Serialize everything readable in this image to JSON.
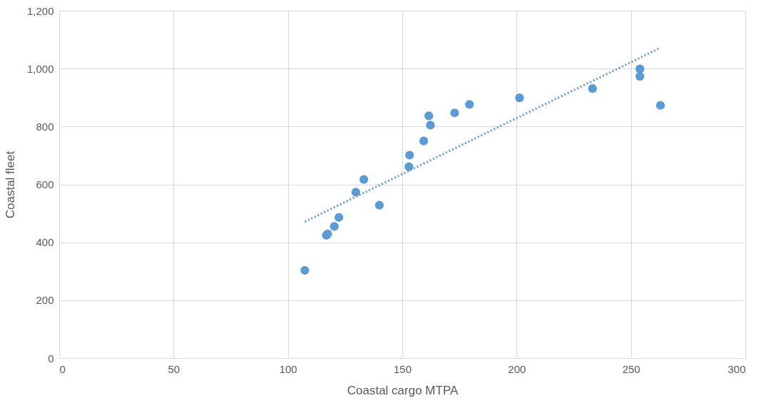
{
  "chart_data": {
    "type": "scatter",
    "xlabel": "Coastal cargo MTPA",
    "ylabel": "Coastal fleet",
    "xlim": [
      0,
      300
    ],
    "xticks": [
      0,
      50,
      100,
      150,
      200,
      250,
      300
    ],
    "ylim": [
      0,
      1200
    ],
    "yticks": [
      {
        "value": 0,
        "label": "0"
      },
      {
        "value": 200,
        "label": "200"
      },
      {
        "value": 400,
        "label": "400"
      },
      {
        "value": 600,
        "label": "600"
      },
      {
        "value": 800,
        "label": "800"
      },
      {
        "value": 1000,
        "label": "1,000"
      },
      {
        "value": 1200,
        "label": "1,200"
      }
    ],
    "grid": true,
    "series": [
      {
        "color": "#5b9bd5",
        "marker": "circle",
        "x": [
          107.4,
          116.8,
          117.4,
          120.3,
          122.3,
          129.7,
          133.2,
          140,
          152.9,
          153.2,
          159.4,
          161.6,
          162.3,
          172.9,
          179.4,
          201.3,
          233.2,
          253.9,
          253.9,
          262.9
        ],
        "values": [
          303,
          424,
          429,
          455,
          486,
          573,
          617,
          528,
          661,
          701,
          750,
          837,
          805,
          847,
          876,
          899,
          931,
          999,
          973,
          873
        ]
      },
      {
        "type": "line",
        "color": "#5b9bd5",
        "line_style": "dotted",
        "x": [
          107.4,
          262.9
        ],
        "values": [
          471,
          1072
        ]
      }
    ]
  }
}
